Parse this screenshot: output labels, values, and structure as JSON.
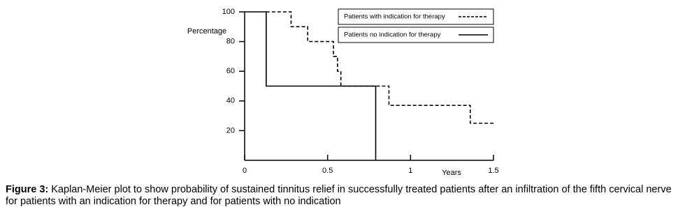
{
  "chart_data": {
    "type": "line",
    "step": true,
    "ylabel": "Percentage",
    "xlabel": "Years",
    "xlim": [
      0,
      1.5
    ],
    "ylim": [
      0,
      100
    ],
    "xticks": [
      0,
      0.5,
      1,
      1.5
    ],
    "yticks": [
      20,
      40,
      60,
      80,
      100
    ],
    "series": [
      {
        "name": "Patients with indication for therapy",
        "color": "#000000",
        "dashed": true,
        "x": [
          0.13,
          0.28,
          0.28,
          0.38,
          0.38,
          0.535,
          0.535,
          0.56,
          0.56,
          0.58,
          0.58,
          0.87,
          0.87,
          1.36,
          1.36,
          1.51
        ],
        "values": [
          100,
          100,
          90,
          90,
          80,
          80,
          70,
          70,
          60,
          60,
          50,
          50,
          37,
          37,
          25,
          25
        ]
      },
      {
        "name": "Patients no indication for therapy",
        "color": "#000000",
        "dashed": false,
        "x": [
          0,
          0.13,
          0.13,
          0.79,
          0.79
        ],
        "values": [
          100,
          100,
          50,
          50,
          0
        ]
      }
    ],
    "caption": {
      "label": "Figure 3:",
      "text": "Kaplan-Meier plot to show probability of sustained tinnitus relief in successfully treated patients after an infiltration of the fifth cervical nerve for patients with an indication for therapy and for patients with no indication"
    }
  }
}
